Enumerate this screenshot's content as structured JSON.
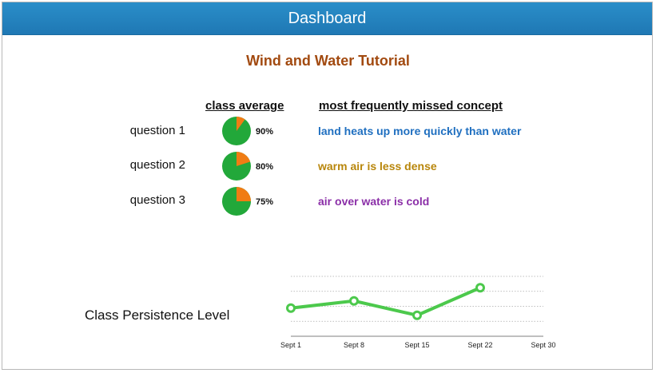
{
  "header": {
    "title": "Dashboard"
  },
  "title": "Wind and Water Tutorial",
  "columns": {
    "class_average": "class average",
    "missed_concept": "most frequently missed concept"
  },
  "questions": [
    {
      "label": "question 1",
      "percent_label": "90%",
      "percent": 90,
      "concept": "land heats up more quickly than water",
      "concept_color": "#1f6fc0"
    },
    {
      "label": "question 2",
      "percent_label": "80%",
      "percent": 80,
      "concept": "warm air is less dense",
      "concept_color": "#b8860b"
    },
    {
      "label": "question 3",
      "percent_label": "75%",
      "percent": 75,
      "concept": "air over water is cold",
      "concept_color": "#8b2fa8"
    }
  ],
  "colors": {
    "pie_correct": "#22a83a",
    "pie_missed": "#f07c14",
    "line": "#4cc94c"
  },
  "persistence": {
    "label": "Class Persistence Level",
    "chart_data": {
      "type": "line",
      "categories": [
        "Sept 1",
        "Sept 8",
        "Sept 15",
        "Sept 22",
        "Sept 30"
      ],
      "values": [
        0.47,
        0.59,
        0.35,
        0.81,
        null
      ],
      "ylim": [
        0,
        1
      ],
      "grid": true
    }
  }
}
